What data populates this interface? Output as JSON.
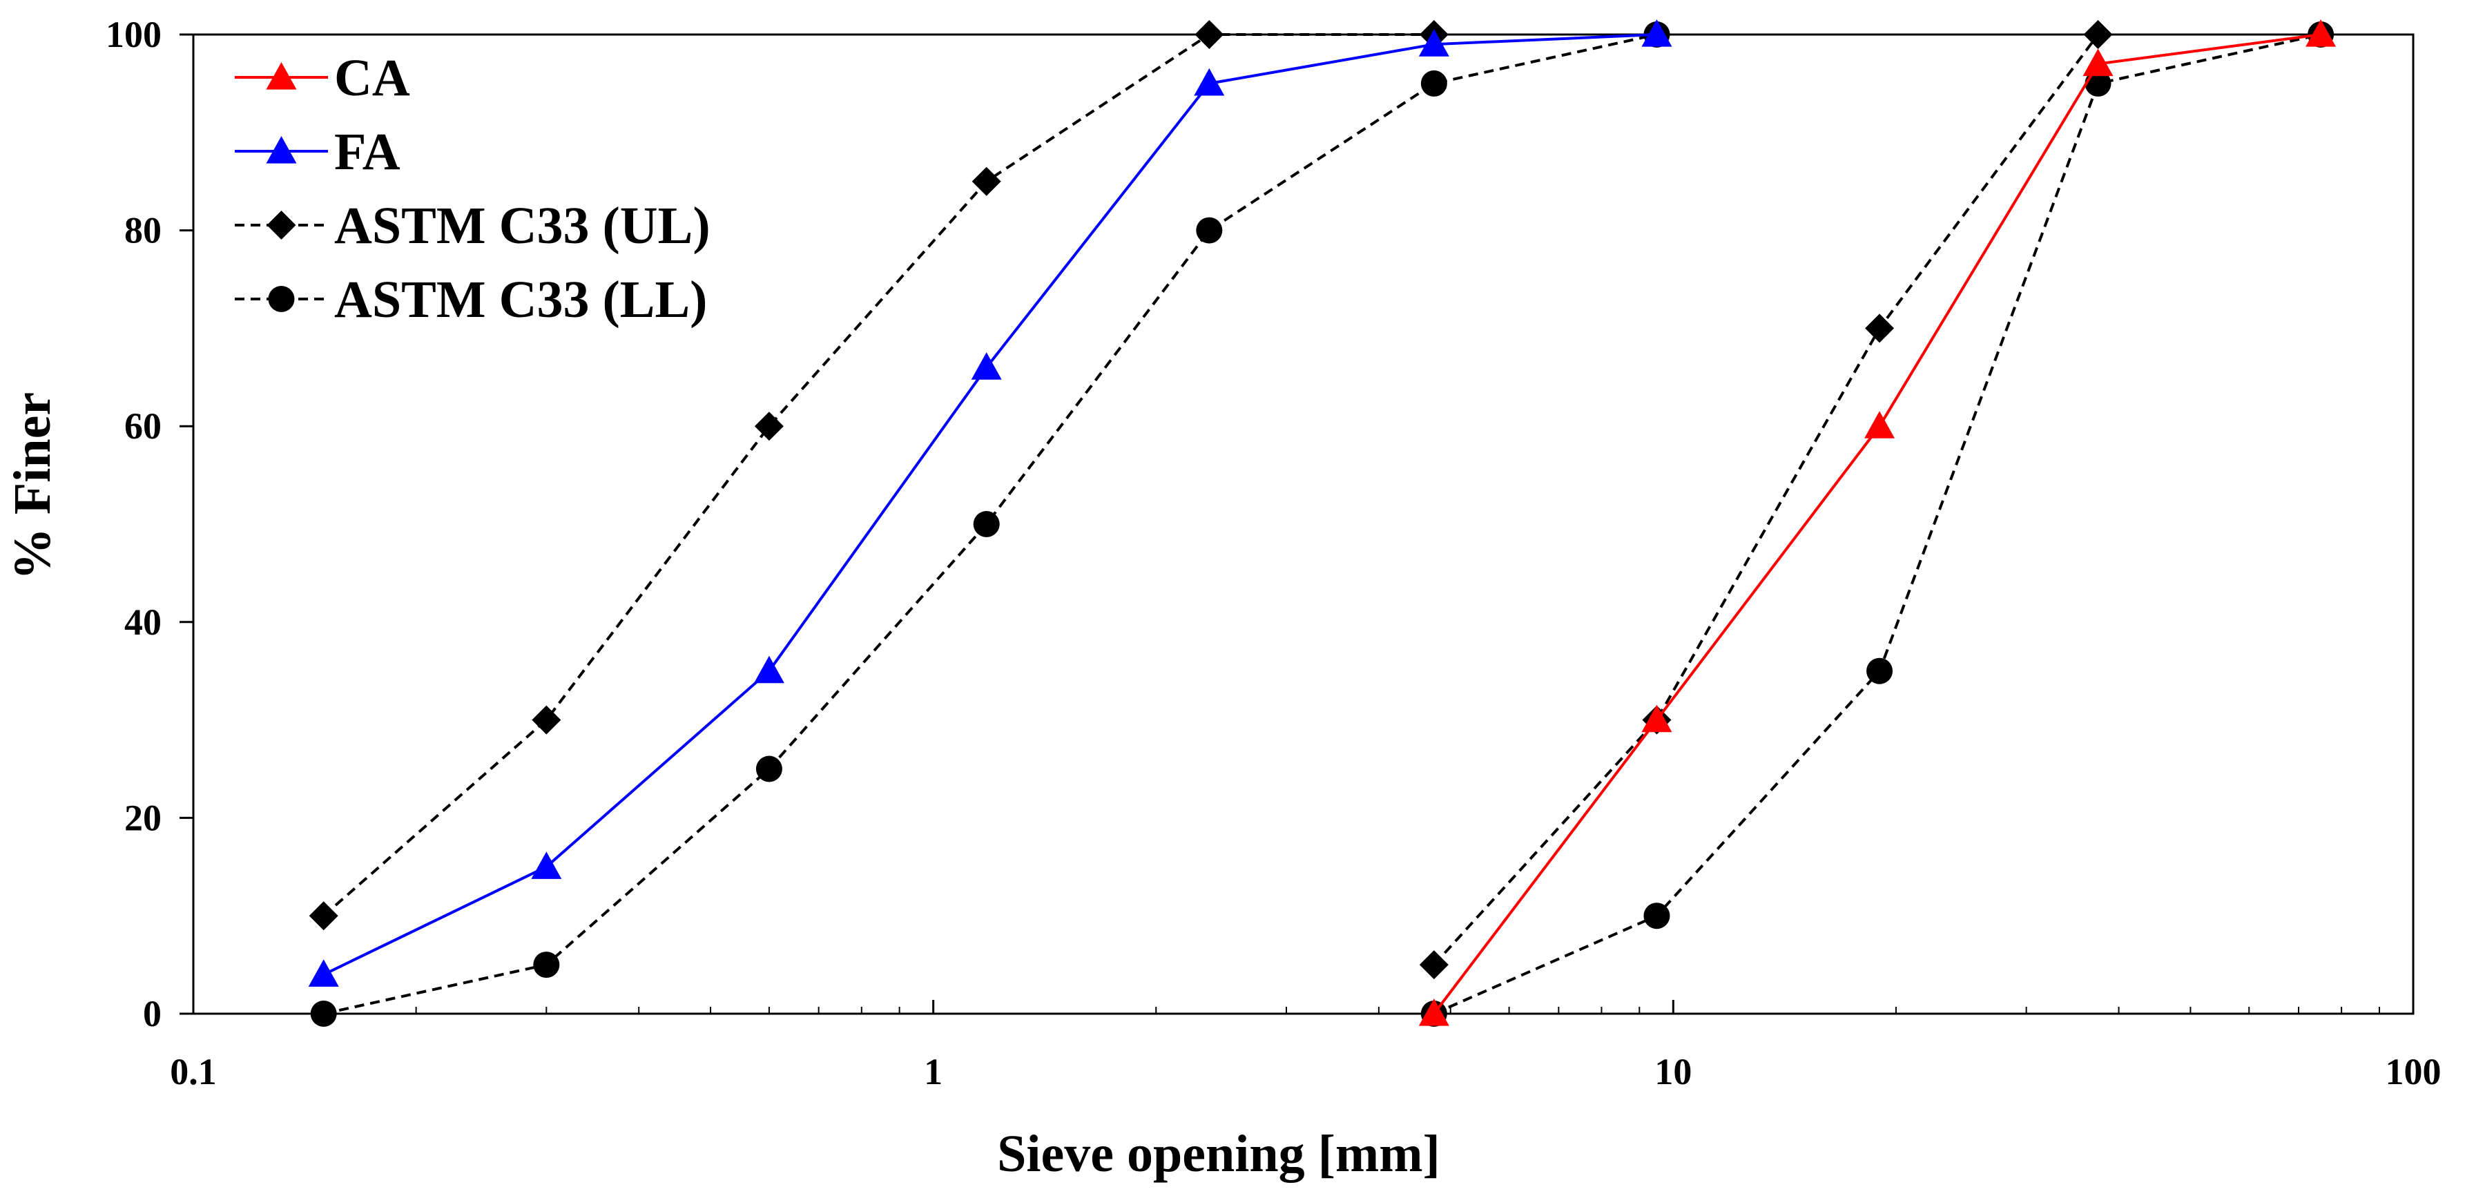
{
  "chart_data": {
    "type": "line",
    "title": "",
    "xlabel": "Sieve opening [mm]",
    "ylabel": "% Finer",
    "xscale": "log",
    "xlim": [
      0.1,
      100
    ],
    "ylim": [
      0,
      100
    ],
    "xticks": [
      {
        "value": 0.1,
        "label": "0.1"
      },
      {
        "value": 1,
        "label": "1"
      },
      {
        "value": 10,
        "label": "10"
      },
      {
        "value": 100,
        "label": "100"
      }
    ],
    "yticks": [
      {
        "value": 0,
        "label": "0"
      },
      {
        "value": 20,
        "label": "20"
      },
      {
        "value": 40,
        "label": "40"
      },
      {
        "value": 60,
        "label": "60"
      },
      {
        "value": 80,
        "label": "80"
      },
      {
        "value": 100,
        "label": "100"
      }
    ],
    "grid": false,
    "legend_position": "top-left",
    "series": [
      {
        "name": "CA",
        "color": "#ff0000",
        "line_style": "solid",
        "marker": "triangle",
        "x": [
          4.75,
          9.5,
          19,
          37.5,
          75
        ],
        "y": [
          0,
          30,
          60,
          97,
          100
        ]
      },
      {
        "name": "FA",
        "color": "#0000ff",
        "line_style": "solid",
        "marker": "triangle",
        "x": [
          0.15,
          0.3,
          0.6,
          1.18,
          2.36,
          4.75,
          9.5
        ],
        "y": [
          4,
          15,
          35,
          66,
          95,
          99,
          100
        ]
      },
      {
        "name": "ASTM C33 (UL)",
        "color": "#000000",
        "line_style": "dashed",
        "marker": "diamond",
        "segments": [
          {
            "x": [
              0.15,
              0.3,
              0.6,
              1.18,
              2.36,
              4.75
            ],
            "y": [
              10,
              30,
              60,
              85,
              100,
              100
            ]
          },
          {
            "x": [
              4.75,
              9.5,
              19,
              37.5
            ],
            "y": [
              5,
              30,
              70,
              100
            ]
          }
        ]
      },
      {
        "name": "ASTM C33 (LL)",
        "color": "#000000",
        "line_style": "dashed",
        "marker": "circle",
        "segments": [
          {
            "x": [
              0.15,
              0.3,
              0.6,
              1.18,
              2.36,
              4.75,
              9.5
            ],
            "y": [
              0,
              5,
              25,
              50,
              80,
              95,
              100
            ]
          },
          {
            "x": [
              4.75,
              9.5,
              19,
              37.5,
              75
            ],
            "y": [
              0,
              10,
              35,
              95,
              100
            ]
          }
        ]
      }
    ]
  }
}
